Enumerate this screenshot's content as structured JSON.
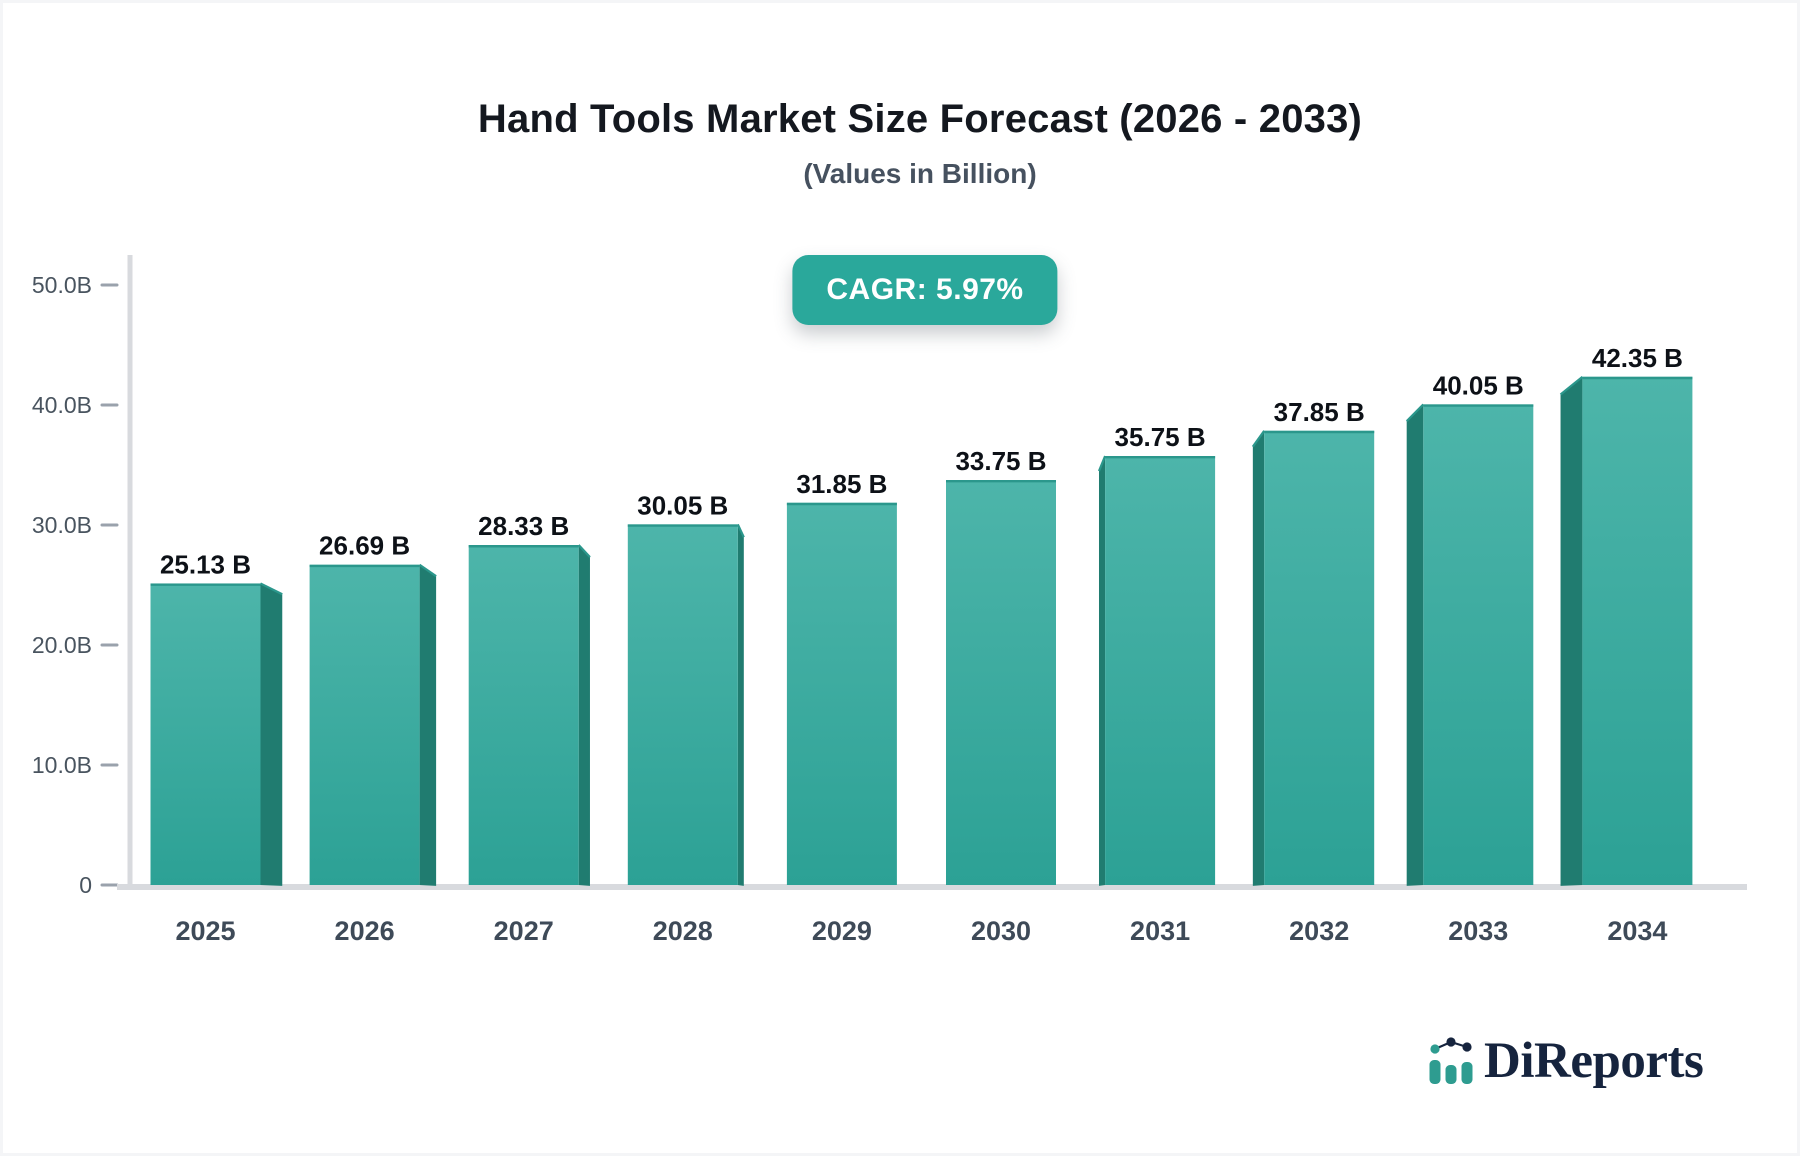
{
  "chart_data": {
    "type": "bar",
    "title": "Hand Tools Market Size Forecast (2026 - 2033)",
    "subtitle": "(Values in Billion)",
    "cagr_label": "CAGR: 5.97%",
    "categories": [
      "2025",
      "2026",
      "2027",
      "2028",
      "2029",
      "2030",
      "2031",
      "2032",
      "2033",
      "2034"
    ],
    "values": [
      25.13,
      26.69,
      28.33,
      30.05,
      31.85,
      33.75,
      35.75,
      37.85,
      40.05,
      42.35
    ],
    "value_labels": [
      "25.13 B",
      "26.69 B",
      "28.33 B",
      "30.05 B",
      "31.85 B",
      "33.75 B",
      "35.75 B",
      "37.85 B",
      "40.05 B",
      "42.35 B"
    ],
    "xlabel": "",
    "ylabel": "",
    "ylim": [
      0,
      50
    ],
    "yticks": {
      "values": [
        0,
        10,
        20,
        30,
        40,
        50
      ],
      "labels": [
        "0",
        "10.0B",
        "20.0B",
        "30.0B",
        "40.0B",
        "50.0B"
      ]
    },
    "grid": false,
    "legend": "none",
    "bar_style": "3d-perspective",
    "colors": {
      "bar_face_top": "#4DB5AA",
      "bar_face_bottom": "#2CA195",
      "bar_side": "#207C70",
      "bar_top_edge": "#2B978C",
      "badge_bg": "#2AA89B",
      "badge_text": "#FFFFFF",
      "axis_line": "#D8DADE",
      "tick_dash": "#9AA2AC",
      "y_tick_label": "#49545F",
      "x_tick_label": "#3E4A58",
      "value_label": "#0D1117",
      "title": "#14181F",
      "subtitle": "#46515F",
      "logo_navy": "#16243E",
      "logo_teal": "#2E9C90"
    }
  },
  "logo": {
    "text": "DiReports"
  }
}
